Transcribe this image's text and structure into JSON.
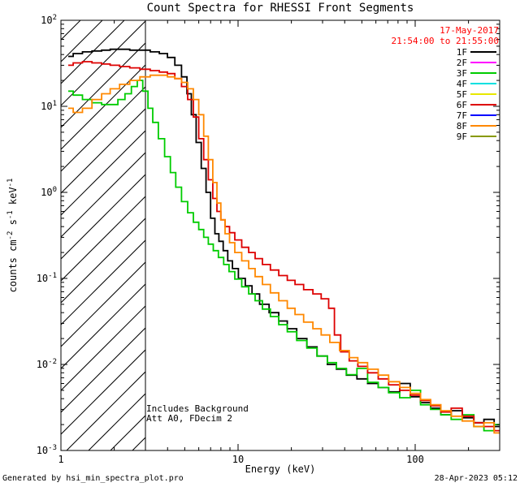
{
  "title": "Count Spectra for RHESSI Front Segments",
  "header": {
    "date": "17-May-2017",
    "time_range": "21:54:00 to 21:55:00"
  },
  "annotations": {
    "line1": "Includes Background",
    "line2": "Att A0, FDecim 2"
  },
  "footer": {
    "left": "Generated by hsi_min_spectra_plot.pro",
    "right": "28-Apr-2023 05:12"
  },
  "colors": {
    "date_text": "#ff0000",
    "axis": "#000000"
  },
  "chart_data": {
    "type": "line",
    "title": "Count Spectra for RHESSI Front Segments",
    "xlabel": "Energy (keV)",
    "ylabel": "counts cm-2 s-1 keV-1",
    "ylabel_parts": [
      {
        "t": "counts cm",
        "sup": false
      },
      {
        "t": "-2",
        "sup": true
      },
      {
        "t": " s",
        "sup": false
      },
      {
        "t": "-1",
        "sup": true
      },
      {
        "t": " keV",
        "sup": false
      },
      {
        "t": "-1",
        "sup": true
      }
    ],
    "x_scale": "log",
    "y_scale": "log",
    "xlim": [
      1,
      300
    ],
    "ylim": [
      0.001,
      100
    ],
    "x_major_ticks": [
      1,
      10,
      100
    ],
    "y_major_exponents": [
      -3,
      -2,
      -1,
      0,
      1,
      2
    ],
    "grid": false,
    "legend_position": "top-right",
    "hatch_region": {
      "xmin": 1,
      "xmax": 3
    },
    "series": [
      {
        "name": "1F",
        "color": "#000000",
        "values": [
          [
            1.1,
            38
          ],
          [
            1.25,
            41
          ],
          [
            1.4,
            43
          ],
          [
            1.6,
            44
          ],
          [
            1.8,
            45
          ],
          [
            2.0,
            46
          ],
          [
            2.3,
            46
          ],
          [
            2.6,
            45
          ],
          [
            3.0,
            45
          ],
          [
            3.4,
            43
          ],
          [
            3.8,
            41
          ],
          [
            4.2,
            37
          ],
          [
            4.6,
            30
          ],
          [
            5.0,
            22
          ],
          [
            5.3,
            14
          ],
          [
            5.6,
            8
          ],
          [
            6.0,
            3.8
          ],
          [
            6.4,
            1.9
          ],
          [
            6.8,
            1.0
          ],
          [
            7.2,
            0.5
          ],
          [
            7.6,
            0.33
          ],
          [
            8.0,
            0.27
          ],
          [
            8.5,
            0.21
          ],
          [
            9.0,
            0.16
          ],
          [
            9.6,
            0.13
          ],
          [
            10.5,
            0.1
          ],
          [
            11.5,
            0.082
          ],
          [
            12.5,
            0.066
          ],
          [
            14,
            0.05
          ],
          [
            16,
            0.04
          ],
          [
            18,
            0.032
          ],
          [
            20,
            0.026
          ],
          [
            23,
            0.02
          ],
          [
            26,
            0.016
          ],
          [
            30,
            0.0125
          ],
          [
            34,
            0.01
          ],
          [
            38,
            0.0088
          ],
          [
            44,
            0.0075
          ],
          [
            50,
            0.0068
          ],
          [
            58,
            0.006
          ],
          [
            66,
            0.0054
          ],
          [
            76,
            0.0048
          ],
          [
            88,
            0.006
          ],
          [
            100,
            0.0042
          ],
          [
            115,
            0.0036
          ],
          [
            130,
            0.0031
          ],
          [
            150,
            0.0026
          ],
          [
            170,
            0.0029
          ],
          [
            200,
            0.0024
          ],
          [
            230,
            0.0021
          ],
          [
            260,
            0.0023
          ],
          [
            300,
            0.0019
          ]
        ]
      },
      {
        "name": "2F",
        "color": "#ff00ff",
        "values": []
      },
      {
        "name": "3F",
        "color": "#00cc00",
        "values": [
          [
            1.1,
            15
          ],
          [
            1.25,
            13.5
          ],
          [
            1.4,
            12
          ],
          [
            1.6,
            11
          ],
          [
            1.8,
            10.5
          ],
          [
            2.0,
            10.5
          ],
          [
            2.2,
            12
          ],
          [
            2.4,
            14
          ],
          [
            2.6,
            17
          ],
          [
            2.8,
            20
          ],
          [
            3.0,
            15
          ],
          [
            3.2,
            9.5
          ],
          [
            3.4,
            6.5
          ],
          [
            3.7,
            4.2
          ],
          [
            4.0,
            2.6
          ],
          [
            4.3,
            1.7
          ],
          [
            4.6,
            1.15
          ],
          [
            5.0,
            0.78
          ],
          [
            5.4,
            0.58
          ],
          [
            5.8,
            0.45
          ],
          [
            6.2,
            0.37
          ],
          [
            6.6,
            0.3
          ],
          [
            7.0,
            0.25
          ],
          [
            7.5,
            0.21
          ],
          [
            8.0,
            0.175
          ],
          [
            8.6,
            0.145
          ],
          [
            9.2,
            0.12
          ],
          [
            10,
            0.098
          ],
          [
            11,
            0.08
          ],
          [
            12,
            0.066
          ],
          [
            13,
            0.055
          ],
          [
            14.5,
            0.044
          ],
          [
            16,
            0.036
          ],
          [
            18,
            0.029
          ],
          [
            20,
            0.024
          ],
          [
            23,
            0.019
          ],
          [
            26,
            0.0155
          ],
          [
            30,
            0.0125
          ],
          [
            34,
            0.0105
          ],
          [
            38,
            0.009
          ],
          [
            44,
            0.0076
          ],
          [
            50,
            0.009
          ],
          [
            58,
            0.0062
          ],
          [
            66,
            0.0054
          ],
          [
            76,
            0.0047
          ],
          [
            88,
            0.0041
          ],
          [
            100,
            0.005
          ],
          [
            115,
            0.0034
          ],
          [
            130,
            0.003
          ],
          [
            150,
            0.0026
          ],
          [
            170,
            0.0023
          ],
          [
            200,
            0.0026
          ],
          [
            230,
            0.0019
          ],
          [
            260,
            0.0017
          ],
          [
            300,
            0.002
          ]
        ]
      },
      {
        "name": "4F",
        "color": "#00e0e0",
        "values": []
      },
      {
        "name": "5F",
        "color": "#e8e800",
        "values": []
      },
      {
        "name": "6F",
        "color": "#dd0000",
        "values": [
          [
            1.1,
            30
          ],
          [
            1.25,
            32
          ],
          [
            1.4,
            33
          ],
          [
            1.6,
            32
          ],
          [
            1.8,
            31
          ],
          [
            2.0,
            30
          ],
          [
            2.3,
            29
          ],
          [
            2.6,
            28
          ],
          [
            3.0,
            27
          ],
          [
            3.4,
            26
          ],
          [
            3.8,
            25
          ],
          [
            4.2,
            24
          ],
          [
            4.6,
            21
          ],
          [
            5.0,
            17
          ],
          [
            5.4,
            12
          ],
          [
            5.8,
            7.5
          ],
          [
            6.2,
            4.2
          ],
          [
            6.6,
            2.4
          ],
          [
            7.0,
            1.4
          ],
          [
            7.4,
            0.85
          ],
          [
            7.8,
            0.6
          ],
          [
            8.2,
            0.48
          ],
          [
            8.7,
            0.4
          ],
          [
            9.2,
            0.34
          ],
          [
            10,
            0.28
          ],
          [
            11,
            0.23
          ],
          [
            12,
            0.2
          ],
          [
            13,
            0.17
          ],
          [
            14.5,
            0.145
          ],
          [
            16,
            0.125
          ],
          [
            18,
            0.108
          ],
          [
            20,
            0.095
          ],
          [
            22,
            0.085
          ],
          [
            25,
            0.074
          ],
          [
            28,
            0.066
          ],
          [
            31,
            0.058
          ],
          [
            34,
            0.045
          ],
          [
            36,
            0.022
          ],
          [
            40,
            0.014
          ],
          [
            45,
            0.011
          ],
          [
            50,
            0.0095
          ],
          [
            58,
            0.008
          ],
          [
            66,
            0.0068
          ],
          [
            76,
            0.0058
          ],
          [
            88,
            0.005
          ],
          [
            100,
            0.0044
          ],
          [
            115,
            0.0038
          ],
          [
            130,
            0.0033
          ],
          [
            150,
            0.0028
          ],
          [
            170,
            0.0031
          ],
          [
            200,
            0.0025
          ],
          [
            230,
            0.0021
          ],
          [
            260,
            0.0019
          ],
          [
            300,
            0.0017
          ]
        ]
      },
      {
        "name": "7F",
        "color": "#0000ff",
        "values": []
      },
      {
        "name": "8F",
        "color": "#ff8800",
        "values": [
          [
            1.1,
            9.5
          ],
          [
            1.25,
            8.5
          ],
          [
            1.4,
            9.5
          ],
          [
            1.6,
            12
          ],
          [
            1.8,
            14
          ],
          [
            2.0,
            16
          ],
          [
            2.3,
            18
          ],
          [
            2.6,
            20
          ],
          [
            3.0,
            22
          ],
          [
            3.4,
            23
          ],
          [
            3.8,
            23
          ],
          [
            4.2,
            22
          ],
          [
            4.6,
            21
          ],
          [
            5.0,
            19
          ],
          [
            5.4,
            16
          ],
          [
            5.8,
            12
          ],
          [
            6.2,
            8
          ],
          [
            6.6,
            4.5
          ],
          [
            7.0,
            2.4
          ],
          [
            7.4,
            1.3
          ],
          [
            7.8,
            0.75
          ],
          [
            8.2,
            0.48
          ],
          [
            8.7,
            0.33
          ],
          [
            9.2,
            0.26
          ],
          [
            10,
            0.2
          ],
          [
            11,
            0.16
          ],
          [
            12,
            0.13
          ],
          [
            13,
            0.105
          ],
          [
            14.5,
            0.085
          ],
          [
            16,
            0.068
          ],
          [
            18,
            0.055
          ],
          [
            20,
            0.045
          ],
          [
            22,
            0.038
          ],
          [
            25,
            0.031
          ],
          [
            28,
            0.026
          ],
          [
            31,
            0.022
          ],
          [
            35,
            0.018
          ],
          [
            40,
            0.0145
          ],
          [
            45,
            0.012
          ],
          [
            50,
            0.0105
          ],
          [
            58,
            0.0088
          ],
          [
            66,
            0.0075
          ],
          [
            76,
            0.0063
          ],
          [
            88,
            0.0054
          ],
          [
            100,
            0.0046
          ],
          [
            115,
            0.0039
          ],
          [
            130,
            0.0034
          ],
          [
            150,
            0.0029
          ],
          [
            170,
            0.0025
          ],
          [
            200,
            0.0022
          ],
          [
            230,
            0.0019
          ],
          [
            260,
            0.0021
          ],
          [
            300,
            0.0016
          ]
        ]
      },
      {
        "name": "9F",
        "color": "#889900",
        "values": []
      }
    ]
  }
}
